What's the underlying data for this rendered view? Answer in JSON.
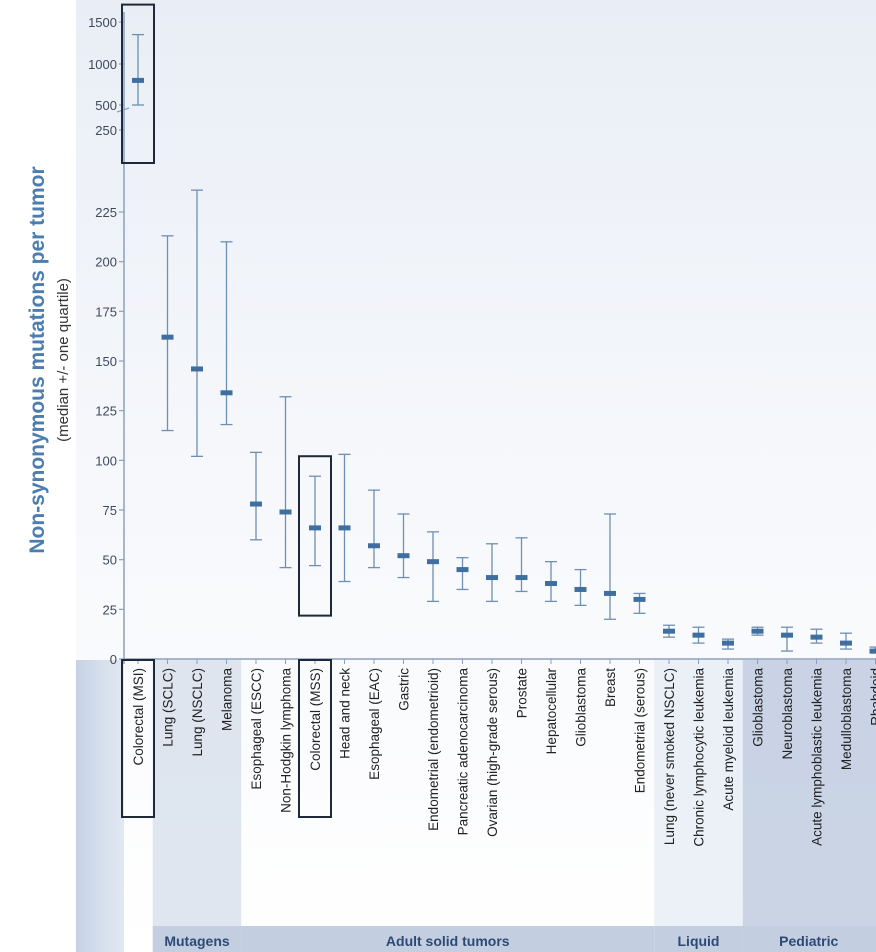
{
  "chart_data": {
    "type": "errorbar",
    "ylabel": "Non-synonymous mutations per tumor",
    "ylabel_sub": "(median +/- one quartile)",
    "y_ticks_upper": [
      "1500",
      "1000",
      "500",
      "250"
    ],
    "y_ticks_lower": [
      "225",
      "200",
      "175",
      "150",
      "125",
      "100",
      "75",
      "50",
      "25",
      "0"
    ],
    "categories": [
      "Colorectal (MSI)",
      "Lung (SCLC)",
      "Lung (NSCLC)",
      "Melanoma",
      "Esophageal (ESCC)",
      "Non-Hodgkin lymphoma",
      "Colorectal (MSS)",
      "Head and neck",
      "Esophageal (EAC)",
      "Gastric",
      "Endometrial (endometrioid)",
      "Pancreatic adenocarcinoma",
      "Ovarian (high-grade serous)",
      "Prostate",
      "Hepatocellular",
      "Glioblastoma",
      "Breast",
      "Endometrial (serous)",
      "Lung (never smoked NSCLC)",
      "Chronic lymphocytic leukemia",
      "Acute myeloid leukemia",
      "Glioblastoma",
      "Neuroblastoma",
      "Acute lymphoblastic leukemia",
      "Medulloblastoma",
      "Rhabdoid"
    ],
    "median": [
      800,
      162,
      146,
      134,
      78,
      74,
      66,
      66,
      57,
      52,
      49,
      45,
      41,
      41,
      38,
      35,
      33,
      30,
      14,
      12,
      8,
      14,
      12,
      11,
      8,
      4
    ],
    "low": [
      500,
      115,
      102,
      118,
      60,
      46,
      47,
      39,
      46,
      41,
      29,
      35,
      29,
      34,
      29,
      27,
      20,
      23,
      11,
      8,
      5,
      12,
      4,
      8,
      5,
      3
    ],
    "high": [
      1350,
      213,
      236,
      210,
      104,
      132,
      92,
      103,
      85,
      73,
      64,
      51,
      58,
      61,
      49,
      45,
      73,
      33,
      17,
      16,
      10,
      16,
      16,
      15,
      13,
      6
    ],
    "highlighted": [
      "Colorectal (MSI)",
      "Colorectal (MSS)"
    ],
    "groups": [
      {
        "name": "Mutagens",
        "start": 1,
        "end": 3
      },
      {
        "name": "Adult solid tumors",
        "start": 4,
        "end": 17
      },
      {
        "name": "Liquid",
        "start": 18,
        "end": 20
      },
      {
        "name": "Pediatric",
        "start": 21,
        "end": 25
      }
    ],
    "colors": {
      "bar": "#3f6fa0",
      "whisker": "#6f8fb3",
      "highlight": "#1e2a3a",
      "title": "#4b7db0"
    }
  }
}
